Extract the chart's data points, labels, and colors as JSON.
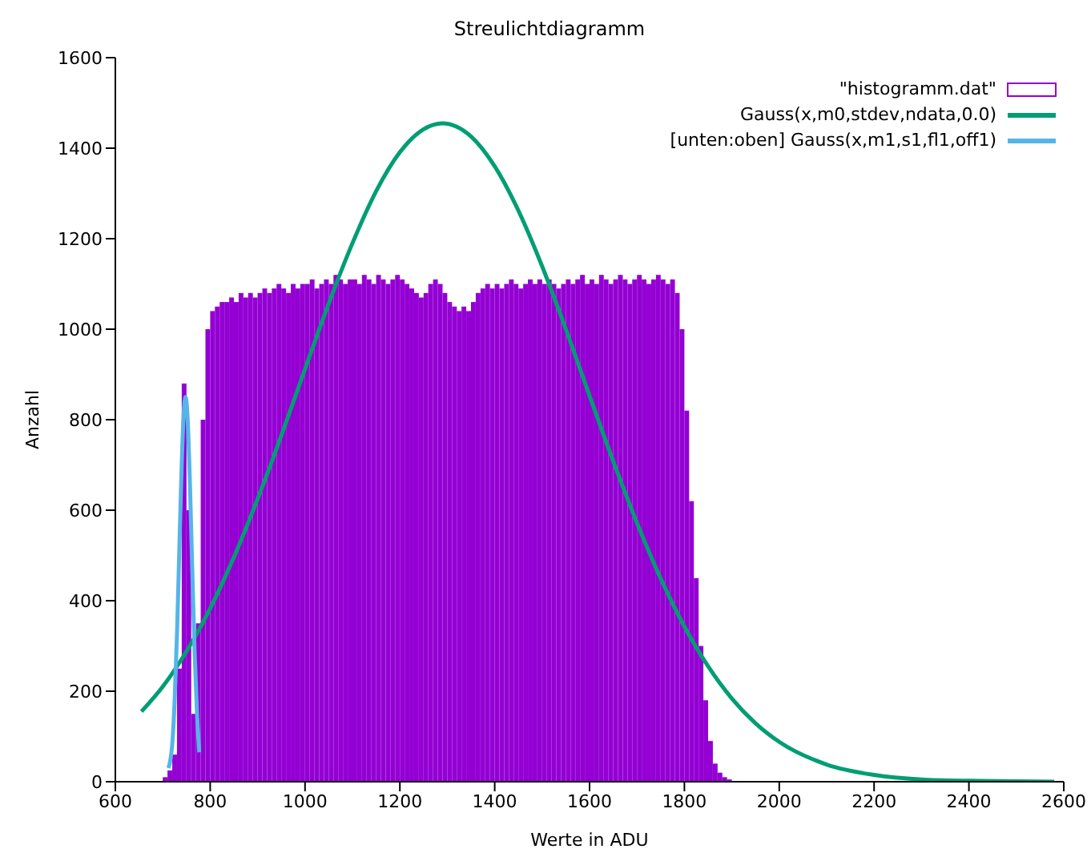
{
  "chart_data": {
    "type": "histogram",
    "title": "Streulichtdiagramm",
    "xlabel": "Werte in ADU",
    "ylabel": "Anzahl",
    "xlim": [
      600,
      2600
    ],
    "xticks": [
      600,
      800,
      1000,
      1200,
      1400,
      1600,
      1800,
      2000,
      2200,
      2400,
      2600
    ],
    "ylim": [
      0,
      1600
    ],
    "yticks": [
      0,
      200,
      400,
      600,
      800,
      1000,
      1200,
      1400,
      1600
    ],
    "grid": false,
    "legend": "top right",
    "series": [
      {
        "name": "\"histogramm.dat\"",
        "color": "#9400d3",
        "bins": [
          700,
          710,
          720,
          730,
          740,
          750,
          760,
          770,
          780,
          790,
          800,
          810,
          820,
          830,
          840,
          850,
          860,
          870,
          880,
          890,
          900,
          910,
          920,
          930,
          940,
          950,
          960,
          970,
          980,
          990,
          1000,
          1010,
          1020,
          1030,
          1040,
          1050,
          1060,
          1070,
          1080,
          1090,
          1100,
          1110,
          1120,
          1130,
          1140,
          1150,
          1160,
          1170,
          1180,
          1190,
          1200,
          1210,
          1220,
          1230,
          1240,
          1250,
          1260,
          1270,
          1280,
          1290,
          1300,
          1310,
          1320,
          1330,
          1340,
          1350,
          1360,
          1370,
          1380,
          1390,
          1400,
          1410,
          1420,
          1430,
          1440,
          1450,
          1460,
          1470,
          1480,
          1490,
          1500,
          1510,
          1520,
          1530,
          1540,
          1550,
          1560,
          1570,
          1580,
          1590,
          1600,
          1610,
          1620,
          1630,
          1640,
          1650,
          1660,
          1670,
          1680,
          1690,
          1700,
          1710,
          1720,
          1730,
          1740,
          1750,
          1760,
          1770,
          1780,
          1790,
          1800,
          1810,
          1820,
          1830,
          1840,
          1850,
          1860,
          1870,
          1880,
          1890,
          1900
        ],
        "values": [
          10,
          25,
          60,
          250,
          880,
          600,
          150,
          350,
          800,
          1000,
          1040,
          1050,
          1060,
          1060,
          1070,
          1060,
          1080,
          1070,
          1080,
          1070,
          1080,
          1090,
          1080,
          1090,
          1100,
          1090,
          1080,
          1100,
          1090,
          1100,
          1100,
          1110,
          1090,
          1100,
          1110,
          1100,
          1120,
          1110,
          1100,
          1110,
          1110,
          1100,
          1120,
          1110,
          1100,
          1120,
          1110,
          1100,
          1110,
          1120,
          1110,
          1100,
          1090,
          1080,
          1070,
          1080,
          1100,
          1110,
          1100,
          1080,
          1060,
          1050,
          1040,
          1050,
          1040,
          1060,
          1080,
          1090,
          1100,
          1090,
          1100,
          1090,
          1100,
          1110,
          1100,
          1090,
          1100,
          1110,
          1100,
          1110,
          1100,
          1110,
          1100,
          1090,
          1100,
          1110,
          1100,
          1110,
          1120,
          1100,
          1110,
          1100,
          1120,
          1110,
          1100,
          1110,
          1120,
          1110,
          1100,
          1110,
          1120,
          1110,
          1100,
          1110,
          1120,
          1110,
          1100,
          1110,
          1080,
          1000,
          820,
          620,
          450,
          300,
          180,
          90,
          40,
          20,
          10,
          5
        ]
      },
      {
        "type": "line",
        "name": "Gauss(x,m0,stdev,ndata,0.0)",
        "color": "#009e73",
        "x": [
          655,
          700,
          750,
          800,
          850,
          900,
          950,
          1000,
          1050,
          1100,
          1150,
          1200,
          1250,
          1290,
          1350,
          1400,
          1450,
          1500,
          1550,
          1600,
          1650,
          1700,
          1750,
          1800,
          1850,
          1900,
          1950,
          2000,
          2100,
          2200,
          2300,
          2400,
          2500,
          2580
        ],
        "values": [
          155,
          210,
          288,
          383,
          496,
          625,
          765,
          912,
          1057,
          1190,
          1305,
          1391,
          1442,
          1455,
          1426,
          1360,
          1262,
          1139,
          1000,
          853,
          708,
          572,
          449,
          343,
          255,
          184,
          129,
          88,
          38,
          15,
          5,
          2,
          1,
          0
        ]
      },
      {
        "type": "line",
        "name": "[unten:oben] Gauss(x,m1,s1,fl1,off1)",
        "color": "#56b4e9",
        "x": [
          712,
          720,
          725,
          730,
          735,
          740,
          745,
          748,
          752,
          757,
          762,
          767,
          772,
          777
        ],
        "values": [
          30,
          83,
          178,
          326,
          516,
          703,
          828,
          850,
          811,
          669,
          476,
          292,
          155,
          65
        ]
      }
    ]
  }
}
